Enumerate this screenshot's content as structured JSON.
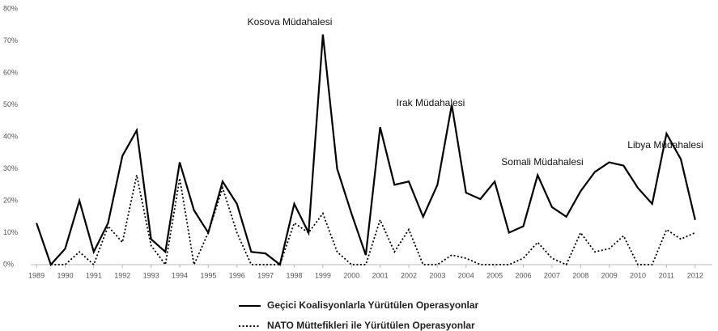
{
  "chart_data": {
    "type": "line",
    "x": [
      1989,
      1989.5,
      1990,
      1990.5,
      1991,
      1991.5,
      1992,
      1992.5,
      1993,
      1993.5,
      1994,
      1994.5,
      1995,
      1995.5,
      1996,
      1996.5,
      1997,
      1997.5,
      1998,
      1998.5,
      1999,
      1999.5,
      2000,
      2000.5,
      2001,
      2001.5,
      2002,
      2002.5,
      2003,
      2003.5,
      2004,
      2004.5,
      2005,
      2005.5,
      2006,
      2006.5,
      2007,
      2007.5,
      2008,
      2008.5,
      2009,
      2009.5,
      2010,
      2010.5,
      2011,
      2011.5,
      2012
    ],
    "series": [
      {
        "name": "Geçici Koalisyonlarla Yürütülen Operasyonlar",
        "color": "#000000",
        "style": "solid",
        "values": [
          13,
          0,
          5,
          20,
          4,
          13,
          34,
          42,
          8,
          4,
          32,
          17,
          10,
          26,
          19,
          4,
          3.5,
          0,
          19,
          10,
          72,
          30,
          16,
          3,
          43,
          25,
          26,
          15,
          25,
          50,
          22.5,
          20.5,
          26,
          10,
          12,
          28,
          18,
          15,
          23,
          29,
          32,
          31,
          24,
          19,
          41,
          33,
          14
        ]
      },
      {
        "name": "NATO Müttefikleri ile Yürütülen Operasyonlar",
        "color": "#000000",
        "style": "dotted",
        "values": [
          null,
          0,
          0,
          4,
          0,
          12,
          7,
          28,
          6,
          0,
          27,
          0,
          10,
          24,
          10,
          0,
          0,
          0,
          13,
          10,
          16,
          4,
          0,
          0,
          14,
          4,
          11,
          0,
          0,
          3,
          2,
          0,
          0,
          0,
          2,
          7,
          2,
          0,
          10,
          4,
          5,
          9,
          0,
          0,
          11,
          8,
          10
        ]
      }
    ],
    "annotations": [
      "Kosova Müdahalesi",
      "Irak Müdahalesi",
      "Somali Müdahalesi",
      "Libya Müdahalesi"
    ],
    "xlim": [
      1988.8,
      2012.6
    ],
    "xticks": [
      1989,
      1990,
      1991,
      1992,
      1993,
      1994,
      1995,
      1996,
      1997,
      1998,
      1999,
      2000,
      2001,
      2002,
      2003,
      2004,
      2005,
      2006,
      2007,
      2008,
      2009,
      2010,
      2011,
      2012
    ],
    "ylim": [
      0,
      80
    ],
    "yticks": [
      {
        "value": 0,
        "label": "0%"
      },
      {
        "value": 10,
        "label": "10%"
      },
      {
        "value": 20,
        "label": "20%"
      },
      {
        "value": 30,
        "label": "30%"
      },
      {
        "value": 40,
        "label": "40%"
      },
      {
        "value": 50,
        "label": "50%"
      },
      {
        "value": 60,
        "label": "60%"
      },
      {
        "value": 70,
        "label": "70%"
      },
      {
        "value": 80,
        "label": "80%"
      }
    ],
    "grid": false
  }
}
